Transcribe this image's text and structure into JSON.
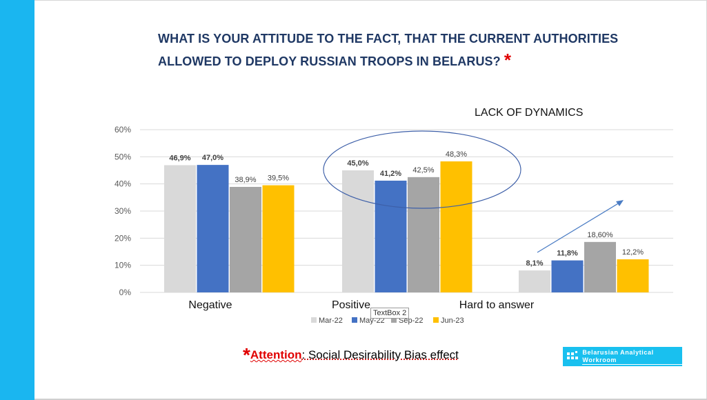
{
  "title": "WHAT IS YOUR ATTITUDE TO THE FACT, THAT THE CURRENT AUTHORITIES ALLOWED TO DEPLOY RUSSIAN TROOPS IN BELARUS?",
  "title_star": "*",
  "annotation": "LACK OF DYNAMICS",
  "textbox_label": "TextBox 2",
  "footnote": {
    "star": "*",
    "attention": "Attention",
    "rest": ": Social Desirability Bias effect"
  },
  "logo_text": "Belarusian Analytical Workroom",
  "colors": {
    "side_bar": "#1ab6f0",
    "title": "#1f3864",
    "accent_red": "#e00000",
    "ellipse": "#3d5fa8",
    "arrow": "#4a7cc4"
  },
  "chart_data": {
    "type": "bar",
    "categories": [
      "Negative",
      "Positive",
      "Hard to answer"
    ],
    "ylim": [
      0,
      60
    ],
    "yticks": [
      "0%",
      "10%",
      "20%",
      "30%",
      "40%",
      "50%",
      "60%"
    ],
    "grid": true,
    "legend_position": "bottom",
    "series": [
      {
        "name": "Mar-22",
        "color": "#d9d9d9",
        "values": [
          46.9,
          45.0,
          8.1
        ],
        "labels": [
          "46,9%",
          "45,0%",
          "8,1%"
        ],
        "bold": true
      },
      {
        "name": "May-22",
        "color": "#4472c4",
        "values": [
          47.0,
          41.2,
          11.8
        ],
        "labels": [
          "47,0%",
          "41,2%",
          "11,8%"
        ],
        "bold": true
      },
      {
        "name": "Sep-22",
        "color": "#a5a5a5",
        "values": [
          38.9,
          42.5,
          18.6
        ],
        "labels": [
          "38,9%",
          "42,5%",
          "18,60%"
        ],
        "bold": false
      },
      {
        "name": "Jun-23",
        "color": "#ffc000",
        "values": [
          39.5,
          48.3,
          12.2
        ],
        "labels": [
          "39,5%",
          "48,3%",
          "12,2%"
        ],
        "bold": false
      }
    ]
  }
}
